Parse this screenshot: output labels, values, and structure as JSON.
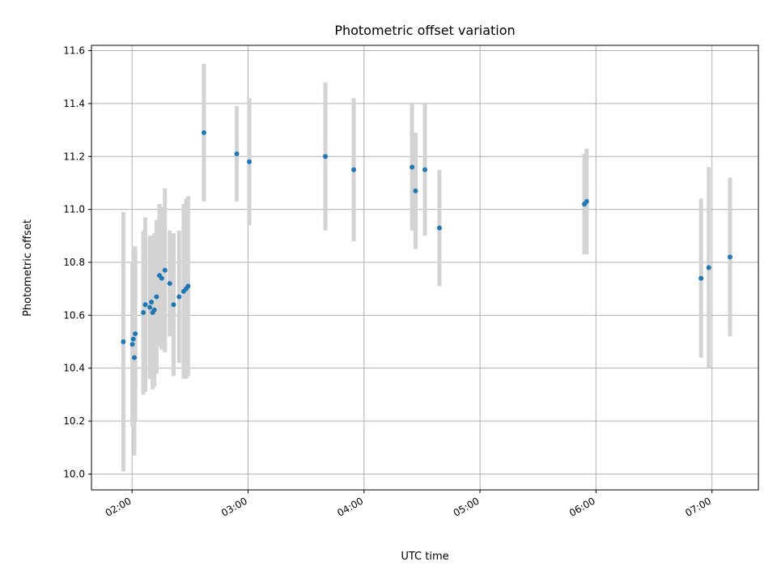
{
  "chart_data": {
    "type": "scatter",
    "title": "Photometric offset variation",
    "xlabel": "UTC time",
    "ylabel": "Photometric offset",
    "x_unit": "UTC time (HH:MM)",
    "xlim": [
      "01:39",
      "07:24"
    ],
    "ylim": [
      9.94,
      11.62
    ],
    "x_ticks": [
      "02:00",
      "03:00",
      "04:00",
      "05:00",
      "06:00",
      "07:00"
    ],
    "y_ticks": [
      "10.0",
      "10.2",
      "10.4",
      "10.6",
      "10.8",
      "11.0",
      "11.2",
      "11.4",
      "11.6"
    ],
    "grid": true,
    "colors": {
      "point": "#1f77b4",
      "errorbar": "#d3d3d3",
      "grid": "#b0b0b0"
    },
    "points": [
      {
        "x": "01:55:30",
        "y": 10.5,
        "err": 0.49
      },
      {
        "x": "02:00:10",
        "y": 10.49,
        "err": 0.31
      },
      {
        "x": "02:00:40",
        "y": 10.51,
        "err": 0.35
      },
      {
        "x": "02:01:10",
        "y": 10.44,
        "err": 0.37
      },
      {
        "x": "02:01:40",
        "y": 10.53,
        "err": 0.33
      },
      {
        "x": "02:05:50",
        "y": 10.61,
        "err": 0.31
      },
      {
        "x": "02:06:50",
        "y": 10.64,
        "err": 0.33
      },
      {
        "x": "02:09:10",
        "y": 10.63,
        "err": 0.27
      },
      {
        "x": "02:10:00",
        "y": 10.65,
        "err": 0.25
      },
      {
        "x": "02:10:40",
        "y": 10.61,
        "err": 0.29
      },
      {
        "x": "02:11:30",
        "y": 10.62,
        "err": 0.29
      },
      {
        "x": "02:12:40",
        "y": 10.67,
        "err": 0.29
      },
      {
        "x": "02:14:10",
        "y": 10.75,
        "err": 0.27
      },
      {
        "x": "02:15:20",
        "y": 10.74,
        "err": 0.27
      },
      {
        "x": "02:17:00",
        "y": 10.77,
        "err": 0.31
      },
      {
        "x": "02:19:30",
        "y": 10.72,
        "err": 0.2
      },
      {
        "x": "02:21:30",
        "y": 10.64,
        "err": 0.27
      },
      {
        "x": "02:24:20",
        "y": 10.67,
        "err": 0.25
      },
      {
        "x": "02:26:40",
        "y": 10.69,
        "err": 0.33
      },
      {
        "x": "02:28:00",
        "y": 10.7,
        "err": 0.34
      },
      {
        "x": "02:29:00",
        "y": 10.71,
        "err": 0.34
      },
      {
        "x": "02:37:10",
        "y": 11.29,
        "err": 0.26
      },
      {
        "x": "02:54:10",
        "y": 11.21,
        "err": 0.18
      },
      {
        "x": "03:00:40",
        "y": 11.18,
        "err": 0.24
      },
      {
        "x": "03:40:00",
        "y": 11.2,
        "err": 0.28
      },
      {
        "x": "03:54:40",
        "y": 11.15,
        "err": 0.27
      },
      {
        "x": "04:24:50",
        "y": 11.16,
        "err": 0.24
      },
      {
        "x": "04:26:40",
        "y": 11.07,
        "err": 0.22
      },
      {
        "x": "04:31:30",
        "y": 11.15,
        "err": 0.25
      },
      {
        "x": "04:39:00",
        "y": 10.93,
        "err": 0.22
      },
      {
        "x": "05:54:00",
        "y": 11.02,
        "err": 0.19
      },
      {
        "x": "05:55:10",
        "y": 11.03,
        "err": 0.2
      },
      {
        "x": "06:54:20",
        "y": 10.74,
        "err": 0.3
      },
      {
        "x": "06:58:20",
        "y": 10.78,
        "err": 0.38
      },
      {
        "x": "07:09:20",
        "y": 10.82,
        "err": 0.3
      }
    ]
  }
}
